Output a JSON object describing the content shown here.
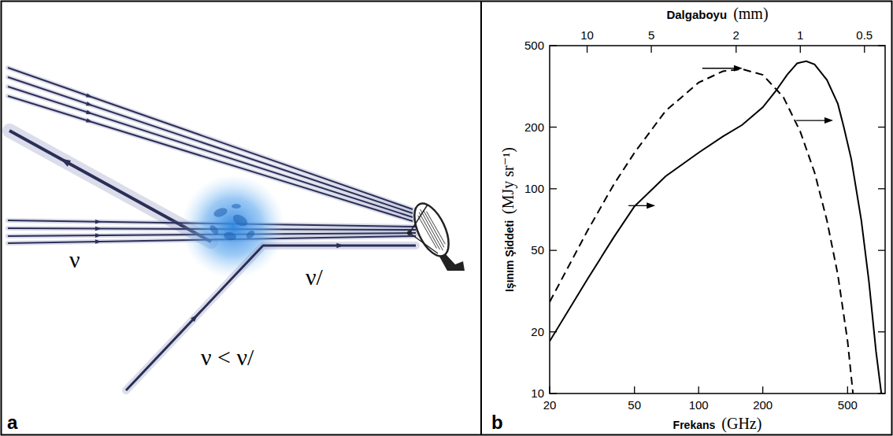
{
  "diagram": {
    "panel_label": "a",
    "incoming_label": "ν",
    "outgoing_label": "ν/",
    "relation": "ν < ν/"
  },
  "chart_data": {
    "type": "line",
    "panel_label": "b",
    "x_label": "Frekans",
    "x_unit": "(GHz)",
    "x2_label": "Dalgaboyu",
    "x2_unit": "(mm)",
    "y_label": "Işınım Şiddeti",
    "y_unit": "(MJy sr⁻¹)",
    "log": true,
    "xlim": [
      20,
      750
    ],
    "xticks": [
      20,
      50,
      100,
      200,
      500
    ],
    "x2lim": [
      14.99,
      0.4
    ],
    "x2ticks": [
      10,
      5,
      2,
      1,
      0.5
    ],
    "ylim": [
      10,
      500
    ],
    "yticks": [
      10,
      20,
      50,
      100,
      200,
      500
    ],
    "series": [
      {
        "color": "#000000",
        "line_style": "dashed",
        "x": [
          20,
          30,
          40,
          50,
          70,
          100,
          130,
          160,
          200,
          250,
          300,
          350,
          400,
          450,
          500,
          530
        ],
        "values": [
          28,
          62,
          105,
          150,
          240,
          330,
          375,
          384,
          360,
          280,
          190,
          120,
          70,
          38,
          18,
          10
        ]
      },
      {
        "color": "#000000",
        "line_style": "solid",
        "x": [
          20,
          30,
          40,
          50,
          70,
          100,
          130,
          160,
          200,
          230,
          260,
          290,
          320,
          350,
          400,
          450,
          480,
          520,
          580,
          630,
          680,
          720
        ],
        "values": [
          18,
          36,
          58,
          82,
          115,
          150,
          180,
          205,
          250,
          300,
          360,
          410,
          420,
          405,
          340,
          260,
          200,
          140,
          70,
          35,
          16,
          10
        ]
      }
    ]
  }
}
